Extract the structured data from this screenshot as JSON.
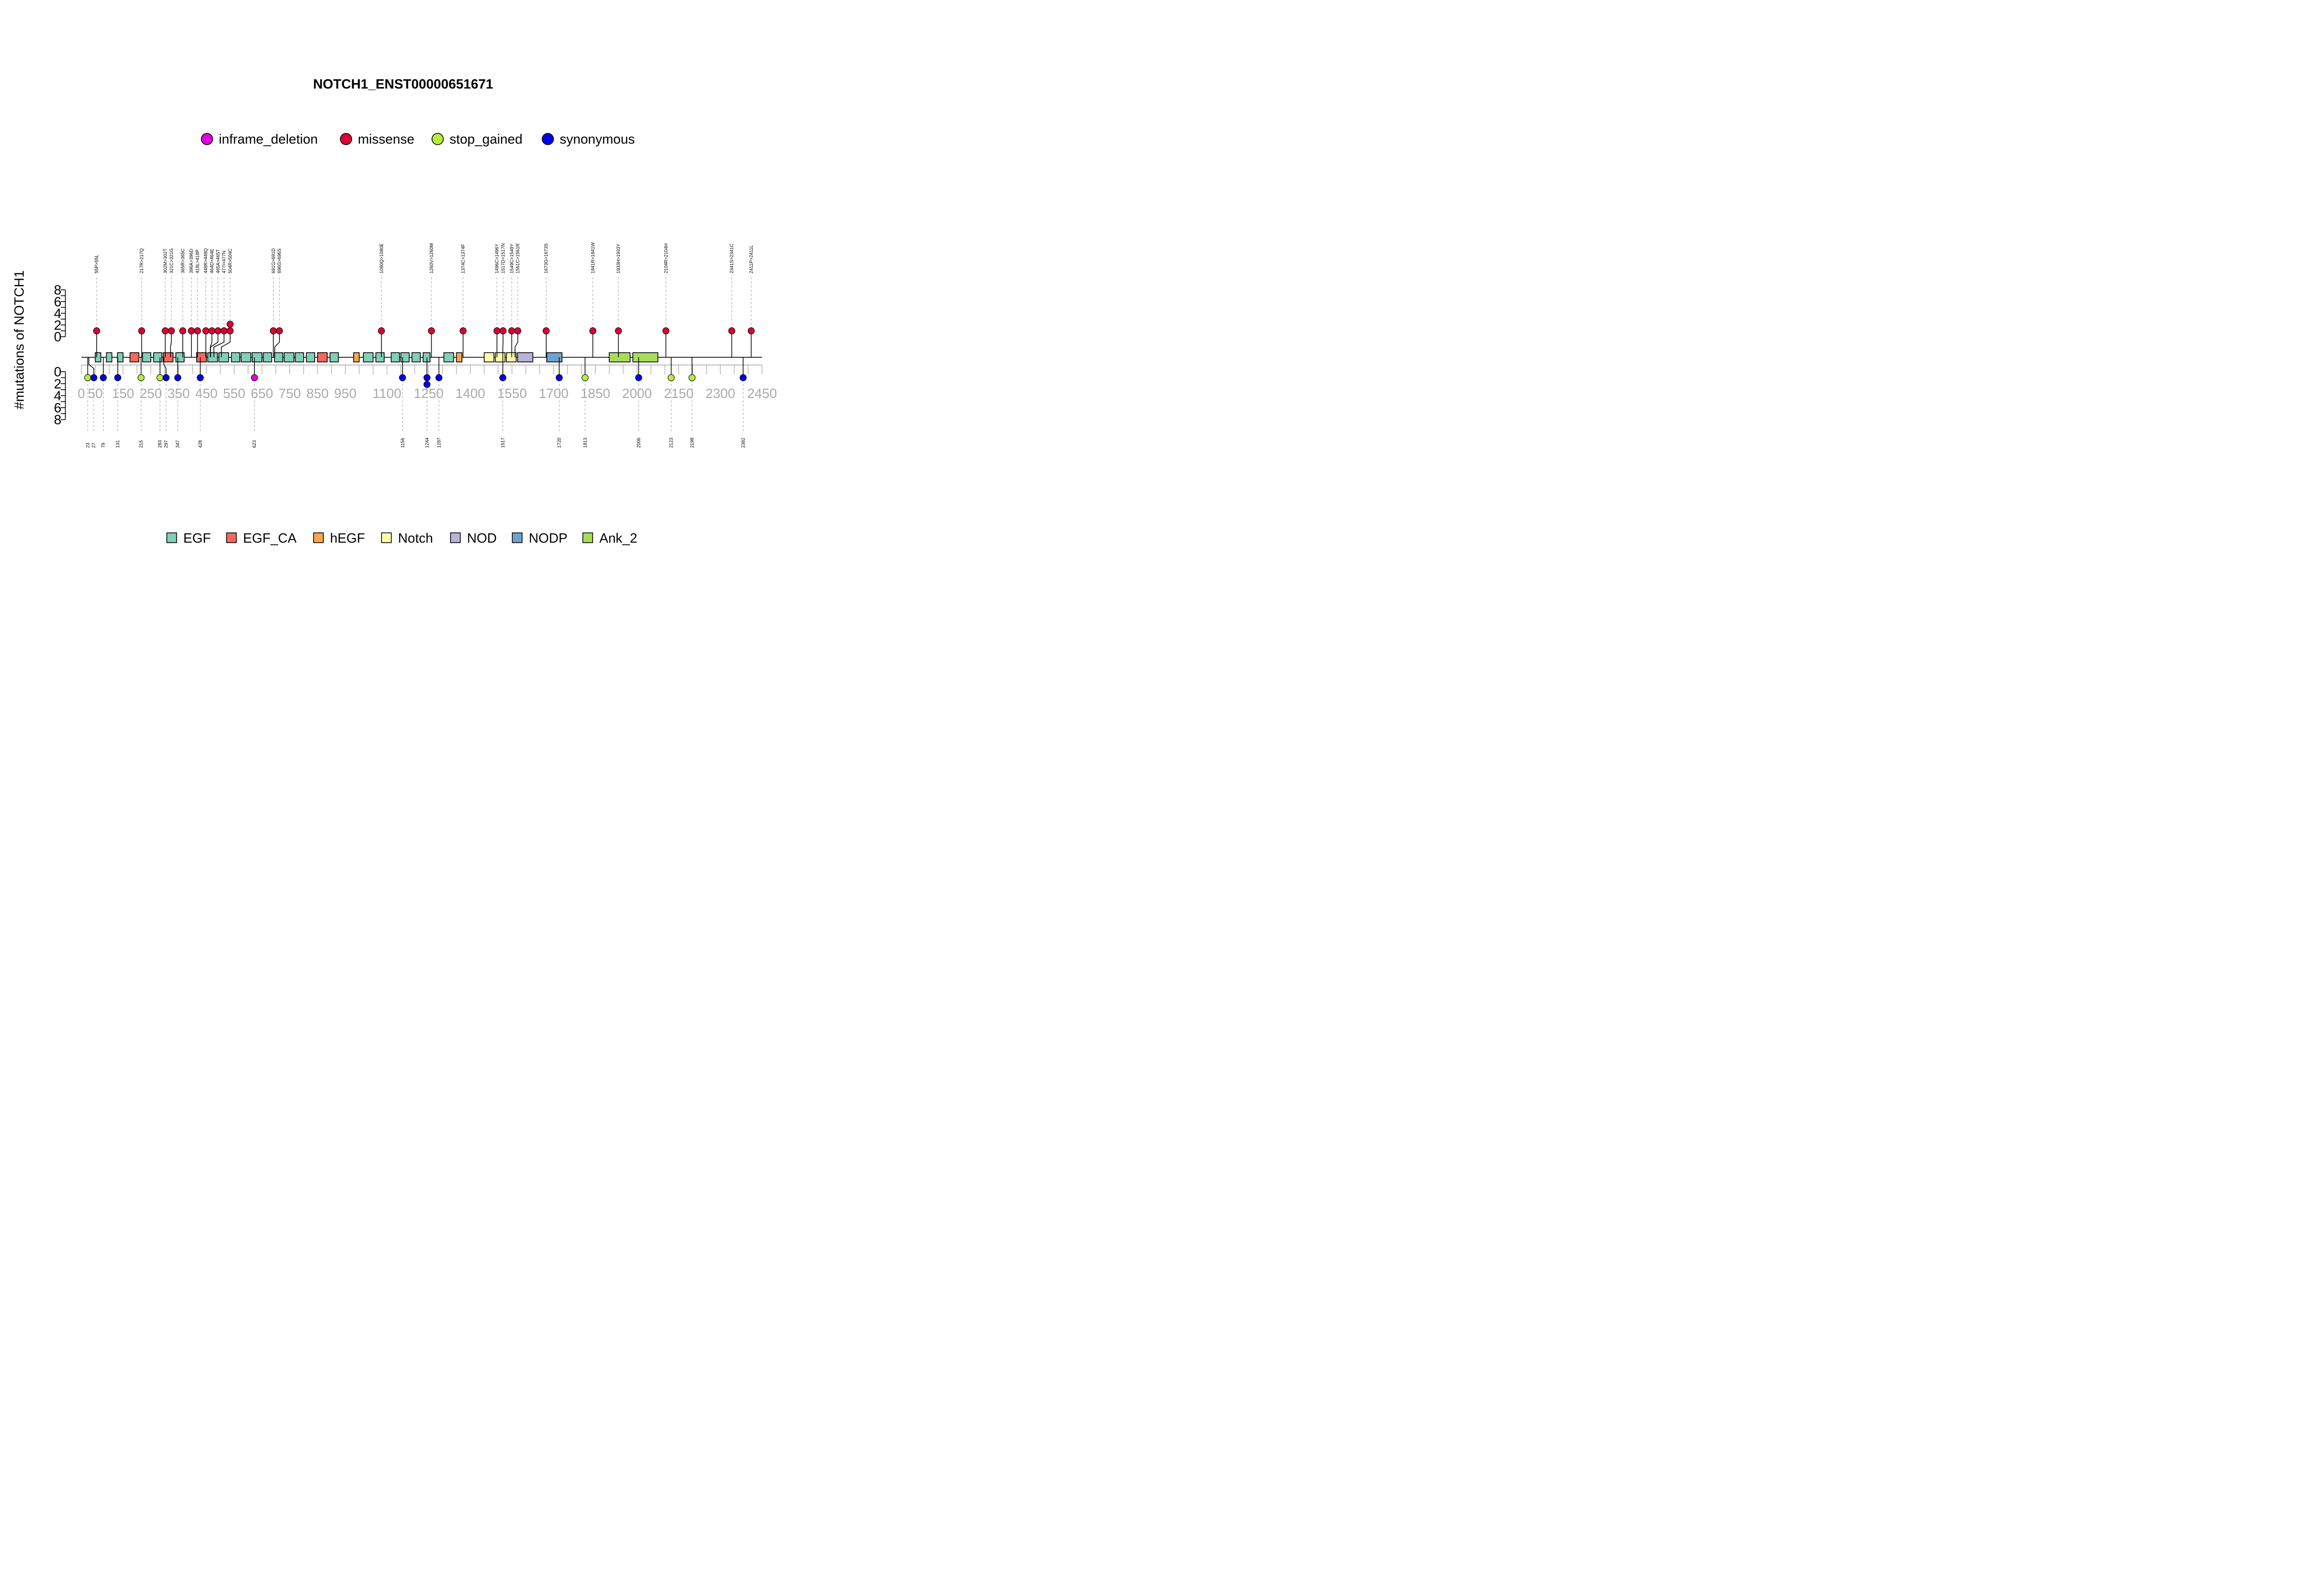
{
  "chart_data": {
    "type": "lollipop",
    "title": "NOTCH1_ENST00000651671",
    "ylabel": "#mutations of NOTCH1",
    "ylim": [
      0,
      8
    ],
    "yticks": [
      "0",
      "2",
      "4",
      "6",
      "8"
    ],
    "x_ticks": [
      0,
      50,
      150,
      250,
      350,
      450,
      550,
      650,
      750,
      850,
      950,
      1100,
      1250,
      1400,
      1550,
      1700,
      1850,
      2000,
      2150,
      2300,
      2450
    ],
    "mutation_types": [
      {
        "name": "inframe_deletion",
        "color": "#e000e0"
      },
      {
        "name": "missense",
        "color": "#dd0033"
      },
      {
        "name": "stop_gained",
        "color": "#b4ee3a"
      },
      {
        "name": "synonymous",
        "color": "#0000ee"
      }
    ],
    "domain_types": [
      {
        "name": "EGF",
        "color": "#80cfb9"
      },
      {
        "name": "EGF_CA",
        "color": "#f5675c"
      },
      {
        "name": "hEGF",
        "color": "#fba64e"
      },
      {
        "name": "Notch",
        "color": "#ffffaa"
      },
      {
        "name": "NOD",
        "color": "#b8b2d6"
      },
      {
        "name": "NODP",
        "color": "#6ea3cf"
      },
      {
        "name": "Ank_2",
        "color": "#a7dc59"
      }
    ],
    "domains": [
      {
        "type": "EGF",
        "start": 50,
        "end": 70
      },
      {
        "type": "EGF",
        "start": 90,
        "end": 110
      },
      {
        "type": "EGF",
        "start": 130,
        "end": 150
      },
      {
        "type": "EGF_CA",
        "start": 175,
        "end": 207
      },
      {
        "type": "EGF",
        "start": 220,
        "end": 250
      },
      {
        "type": "EGF",
        "start": 260,
        "end": 290
      },
      {
        "type": "EGF_CA",
        "start": 295,
        "end": 330
      },
      {
        "type": "EGF",
        "start": 340,
        "end": 370
      },
      {
        "type": "EGF_CA",
        "start": 415,
        "end": 450
      },
      {
        "type": "EGF",
        "start": 455,
        "end": 490
      },
      {
        "type": "EGF",
        "start": 495,
        "end": 530
      },
      {
        "type": "EGF",
        "start": 540,
        "end": 570
      },
      {
        "type": "EGF",
        "start": 575,
        "end": 610
      },
      {
        "type": "EGF",
        "start": 615,
        "end": 650
      },
      {
        "type": "EGF",
        "start": 655,
        "end": 685
      },
      {
        "type": "EGF",
        "start": 695,
        "end": 725
      },
      {
        "type": "EGF",
        "start": 730,
        "end": 765
      },
      {
        "type": "EGF",
        "start": 770,
        "end": 800
      },
      {
        "type": "EGF",
        "start": 810,
        "end": 840
      },
      {
        "type": "EGF_CA",
        "start": 850,
        "end": 885
      },
      {
        "type": "EGF",
        "start": 895,
        "end": 925
      },
      {
        "type": "hEGF",
        "start": 980,
        "end": 1000
      },
      {
        "type": "EGF",
        "start": 1015,
        "end": 1050
      },
      {
        "type": "EGF",
        "start": 1060,
        "end": 1090
      },
      {
        "type": "EGF",
        "start": 1115,
        "end": 1145
      },
      {
        "type": "EGF",
        "start": 1150,
        "end": 1180
      },
      {
        "type": "EGF",
        "start": 1190,
        "end": 1220
      },
      {
        "type": "EGF",
        "start": 1230,
        "end": 1255
      },
      {
        "type": "EGF",
        "start": 1305,
        "end": 1340
      },
      {
        "type": "hEGF",
        "start": 1350,
        "end": 1370
      },
      {
        "type": "Notch",
        "start": 1450,
        "end": 1485
      },
      {
        "type": "Notch",
        "start": 1490,
        "end": 1525
      },
      {
        "type": "Notch",
        "start": 1530,
        "end": 1565
      },
      {
        "type": "NOD",
        "start": 1570,
        "end": 1625
      },
      {
        "type": "NODP",
        "start": 1675,
        "end": 1730
      },
      {
        "type": "Ank_2",
        "start": 1900,
        "end": 1975
      },
      {
        "type": "Ank_2",
        "start": 1985,
        "end": 2075
      }
    ],
    "mutations_above": [
      {
        "label": "55P>55L",
        "pos": 55,
        "count": 1,
        "type": "missense"
      },
      {
        "label": "217R>217Q",
        "pos": 217,
        "count": 1,
        "type": "missense"
      },
      {
        "label": "302M>302T",
        "pos": 302,
        "count": 1,
        "type": "missense"
      },
      {
        "label": "321C>321G",
        "pos": 321,
        "count": 1,
        "type": "missense"
      },
      {
        "label": "365R>365C",
        "pos": 365,
        "count": 1,
        "type": "missense"
      },
      {
        "label": "396A>396D",
        "pos": 396,
        "count": 1,
        "type": "missense"
      },
      {
        "label": "418L>418P",
        "pos": 418,
        "count": 1,
        "type": "missense"
      },
      {
        "label": "448R>448Q",
        "pos": 448,
        "count": 1,
        "type": "missense"
      },
      {
        "label": "464D>464E",
        "pos": 464,
        "count": 1,
        "type": "missense"
      },
      {
        "label": "465A>465T",
        "pos": 465,
        "count": 1,
        "type": "missense"
      },
      {
        "label": "477I>477N",
        "pos": 477,
        "count": 1,
        "type": "missense"
      },
      {
        "label": "504R>504C",
        "pos": 504,
        "count": 2,
        "type": "missense"
      },
      {
        "label": "691G>691D",
        "pos": 691,
        "count": 1,
        "type": "missense"
      },
      {
        "label": "696G>696S",
        "pos": 696,
        "count": 1,
        "type": "missense"
      },
      {
        "label": "1080Q>1080E",
        "pos": 1080,
        "count": 1,
        "type": "missense"
      },
      {
        "label": "1260V>1260M",
        "pos": 1260,
        "count": 1,
        "type": "missense"
      },
      {
        "label": "1374C>1374F",
        "pos": 1374,
        "count": 1,
        "type": "missense"
      },
      {
        "label": "1496C>1496Y",
        "pos": 1496,
        "count": 1,
        "type": "missense"
      },
      {
        "label": "1517D>1517N",
        "pos": 1517,
        "count": 1,
        "type": "missense"
      },
      {
        "label": "1549C>1549Y",
        "pos": 1549,
        "count": 1,
        "type": "missense"
      },
      {
        "label": "1561C>1561R",
        "pos": 1561,
        "count": 1,
        "type": "missense"
      },
      {
        "label": "1673G>1673S",
        "pos": 1673,
        "count": 1,
        "type": "missense"
      },
      {
        "label": "1841R>1841W",
        "pos": 1841,
        "count": 1,
        "type": "missense"
      },
      {
        "label": "1933H>1933Y",
        "pos": 1933,
        "count": 1,
        "type": "missense"
      },
      {
        "label": "2104R>2104H",
        "pos": 2104,
        "count": 1,
        "type": "missense"
      },
      {
        "label": "2341S>2341C",
        "pos": 2341,
        "count": 1,
        "type": "missense"
      },
      {
        "label": "2411P>2411L",
        "pos": 2411,
        "count": 1,
        "type": "missense"
      }
    ],
    "mutations_below": [
      {
        "label": "23",
        "pos": 23,
        "count": 1,
        "type": "stop_gained"
      },
      {
        "label": "27",
        "pos": 27,
        "count": 1,
        "type": "synonymous"
      },
      {
        "label": "79",
        "pos": 79,
        "count": 1,
        "type": "synonymous"
      },
      {
        "label": "131",
        "pos": 131,
        "count": 1,
        "type": "synonymous"
      },
      {
        "label": "215",
        "pos": 215,
        "count": 1,
        "type": "stop_gained"
      },
      {
        "label": "283",
        "pos": 283,
        "count": 1,
        "type": "stop_gained"
      },
      {
        "label": "297",
        "pos": 297,
        "count": 1,
        "type": "synonymous"
      },
      {
        "label": "347",
        "pos": 347,
        "count": 1,
        "type": "synonymous"
      },
      {
        "label": "428",
        "pos": 428,
        "count": 1,
        "type": "synonymous"
      },
      {
        "label": "623",
        "pos": 623,
        "count": 1,
        "type": "inframe_deletion"
      },
      {
        "label": "1156",
        "pos": 1156,
        "count": 1,
        "type": "synonymous"
      },
      {
        "label": "1244",
        "pos": 1244,
        "count": 2,
        "type": "synonymous"
      },
      {
        "label": "1287",
        "pos": 1287,
        "count": 1,
        "type": "synonymous"
      },
      {
        "label": "1517",
        "pos": 1517,
        "count": 1,
        "type": "synonymous"
      },
      {
        "label": "1720",
        "pos": 1720,
        "count": 1,
        "type": "synonymous"
      },
      {
        "label": "1813",
        "pos": 1813,
        "count": 1,
        "type": "stop_gained"
      },
      {
        "label": "2006",
        "pos": 2006,
        "count": 1,
        "type": "synonymous"
      },
      {
        "label": "2123",
        "pos": 2123,
        "count": 1,
        "type": "stop_gained"
      },
      {
        "label": "2198",
        "pos": 2198,
        "count": 1,
        "type": "stop_gained"
      },
      {
        "label": "2382",
        "pos": 2382,
        "count": 1,
        "type": "synonymous"
      }
    ]
  }
}
